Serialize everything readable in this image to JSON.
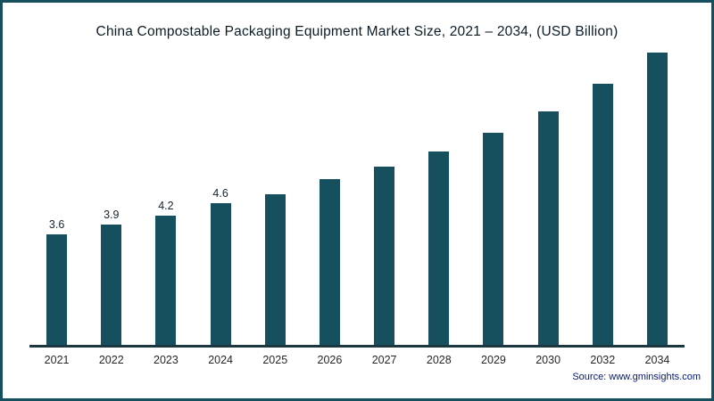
{
  "title": "China  Compostable Packaging Equipment Market Size, 2021 – 2034, (USD Billion)",
  "source": "Source: www.gminsights.com",
  "colors": {
    "bar": "#16505f",
    "border": "#16505f",
    "axis": "#1d3740"
  },
  "chart_data": {
    "type": "bar",
    "title": "China  Compostable Packaging Equipment Market Size, 2021 – 2034, (USD Billion)",
    "categories": [
      "2021",
      "2022",
      "2023",
      "2024",
      "2025",
      "2026",
      "2027",
      "2028",
      "2029",
      "2030",
      "2032",
      "2034"
    ],
    "values": [
      3.6,
      3.9,
      4.2,
      4.6,
      4.9,
      5.4,
      5.8,
      6.3,
      6.9,
      7.6,
      8.5,
      9.5
    ],
    "data_labels": [
      "3.6",
      "3.9",
      "4.2",
      "4.6",
      "",
      "",
      "",
      "",
      "",
      "",
      "",
      ""
    ],
    "xlabel": "",
    "ylabel": "",
    "ylim": [
      0,
      10
    ],
    "grid": false,
    "legend": false,
    "bar_color": "#16505f"
  }
}
